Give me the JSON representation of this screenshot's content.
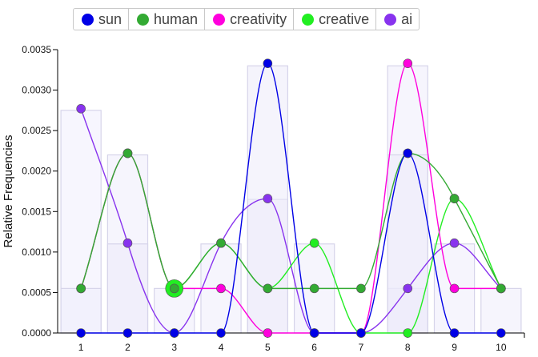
{
  "chart_data": {
    "type": "line",
    "ylabel": "Relative Frequencies",
    "ylim": [
      0,
      0.0035
    ],
    "yticks": [
      "0.0000",
      "0.0005",
      "0.0010",
      "0.0015",
      "0.0020",
      "0.0025",
      "0.0030",
      "0.0035"
    ],
    "categories": [
      "1",
      "2",
      "3",
      "4",
      "5",
      "6",
      "7",
      "8",
      "9",
      "10"
    ],
    "bars": [
      0.00055,
      0.0022,
      0.00055,
      0.0011,
      0.00165,
      0.0011,
      0,
      0.0033,
      0.0011,
      0.00055
    ],
    "bars_inner": [
      0,
      0.0011,
      0,
      0,
      0.0033,
      0,
      0,
      0.0022,
      0,
      0
    ],
    "bars_back": [
      0.00275,
      0,
      0,
      0,
      0,
      0,
      0,
      0.00055,
      0,
      0
    ],
    "legend_position": "top",
    "series": [
      {
        "name": "sun",
        "color": "#0000e6",
        "values": [
          0,
          0,
          0,
          0,
          0.00333,
          0,
          0,
          0.00222,
          0,
          0
        ]
      },
      {
        "name": "human",
        "color": "#33aa33",
        "values": [
          0.00055,
          0.00222,
          0.00055,
          0.00111,
          0.00055,
          0.00055,
          0.00055,
          0.00222,
          0.00166,
          0.00055
        ]
      },
      {
        "name": "creativity",
        "color": "#ff00dd",
        "values": [
          0.00055,
          0.00222,
          0.00055,
          0.00055,
          0,
          0,
          0,
          0.00333,
          0.00055,
          0.00055
        ]
      },
      {
        "name": "creative",
        "color": "#22ee22",
        "values": [
          0.00055,
          0.00222,
          0.00055,
          0.00111,
          0.00055,
          0.00111,
          0,
          0,
          0.00166,
          0.00055
        ]
      },
      {
        "name": "ai",
        "color": "#8833ee",
        "values": [
          0.00277,
          0.00111,
          0,
          0.00111,
          0.00166,
          0,
          0,
          0.00055,
          0.00111,
          0.00055
        ]
      }
    ],
    "highlight": {
      "series": "creative",
      "category": "3"
    }
  }
}
